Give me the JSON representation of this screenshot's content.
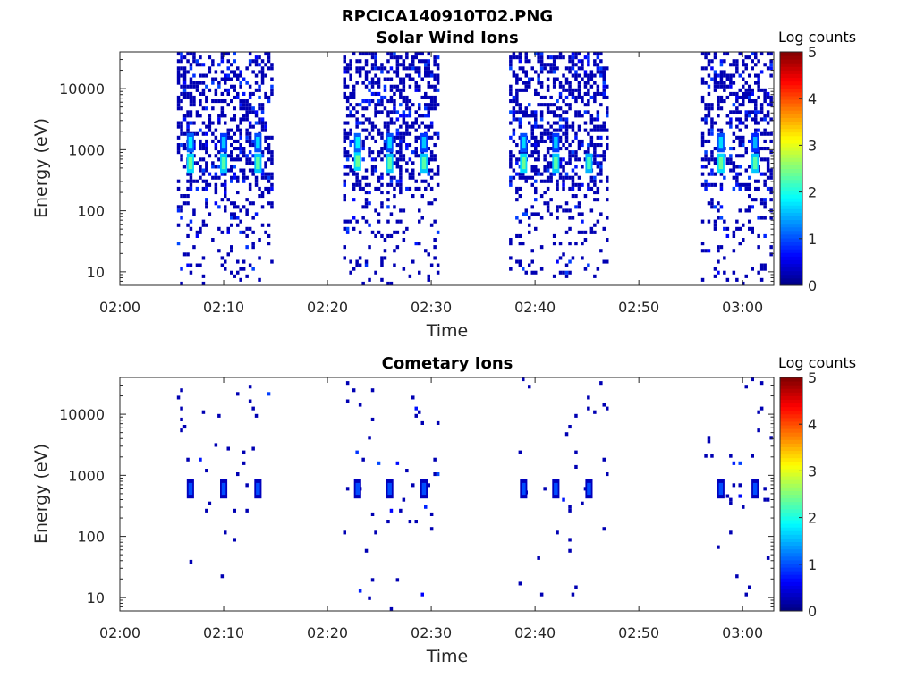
{
  "figure": {
    "title": "RPCICA140910T02.PNG"
  },
  "chart_data": [
    {
      "type": "heatmap",
      "title": "Solar Wind Ions",
      "xlabel": "Time",
      "ylabel": "Energy (eV)",
      "x_unit": "minutes after 02:00",
      "xlim": [
        0,
        63
      ],
      "xticks": [
        0,
        10,
        20,
        30,
        40,
        50,
        60
      ],
      "xtick_labels": [
        "02:00",
        "02:10",
        "02:20",
        "02:30",
        "02:40",
        "02:50",
        "03:00"
      ],
      "yscale": "log",
      "ylim": [
        6,
        40000
      ],
      "yticks": [
        10,
        100,
        1000,
        10000
      ],
      "ytick_labels": [
        "10",
        "100",
        "1000",
        "10000"
      ],
      "colorbar": {
        "title": "Log counts",
        "range": [
          0,
          5
        ],
        "ticks": [
          "0",
          "1",
          "2",
          "3",
          "4",
          "5"
        ]
      },
      "bursts": [
        {
          "start": 5.5,
          "end": 14.8,
          "peaks": [
            {
              "t": 6.8,
              "e": 600,
              "logc": 2.4
            },
            {
              "t": 6.8,
              "e": 1300,
              "logc": 1.8
            },
            {
              "t": 10.0,
              "e": 600,
              "logc": 2.3
            },
            {
              "t": 10.0,
              "e": 1300,
              "logc": 1.6
            },
            {
              "t": 13.3,
              "e": 600,
              "logc": 2.3
            },
            {
              "t": 13.3,
              "e": 1300,
              "logc": 1.7
            }
          ]
        },
        {
          "start": 21.5,
          "end": 30.8,
          "peaks": [
            {
              "t": 22.9,
              "e": 650,
              "logc": 2.4
            },
            {
              "t": 22.9,
              "e": 1300,
              "logc": 1.8
            },
            {
              "t": 26.0,
              "e": 600,
              "logc": 2.3
            },
            {
              "t": 26.0,
              "e": 1300,
              "logc": 1.7
            },
            {
              "t": 29.3,
              "e": 600,
              "logc": 2.3
            },
            {
              "t": 29.3,
              "e": 1300,
              "logc": 1.6
            }
          ]
        },
        {
          "start": 37.5,
          "end": 46.8,
          "peaks": [
            {
              "t": 38.9,
              "e": 600,
              "logc": 2.4
            },
            {
              "t": 38.9,
              "e": 1300,
              "logc": 1.7
            },
            {
              "t": 42.0,
              "e": 600,
              "logc": 2.3
            },
            {
              "t": 42.0,
              "e": 1300,
              "logc": 1.6
            },
            {
              "t": 45.2,
              "e": 600,
              "logc": 2.2
            }
          ]
        },
        {
          "start": 56.0,
          "end": 62.8,
          "peaks": [
            {
              "t": 57.9,
              "e": 600,
              "logc": 2.4
            },
            {
              "t": 57.9,
              "e": 1300,
              "logc": 1.7
            },
            {
              "t": 61.2,
              "e": 600,
              "logc": 2.3
            },
            {
              "t": 61.2,
              "e": 1300,
              "logc": 1.5
            }
          ]
        }
      ]
    },
    {
      "type": "heatmap",
      "title": "Cometary Ions",
      "xlabel": "Time",
      "ylabel": "Energy (eV)",
      "x_unit": "minutes after 02:00",
      "xlim": [
        0,
        63
      ],
      "xticks": [
        0,
        10,
        20,
        30,
        40,
        50,
        60
      ],
      "xtick_labels": [
        "02:00",
        "02:10",
        "02:20",
        "02:30",
        "02:40",
        "02:50",
        "03:00"
      ],
      "yscale": "log",
      "ylim": [
        6,
        40000
      ],
      "yticks": [
        10,
        100,
        1000,
        10000
      ],
      "ytick_labels": [
        "10",
        "100",
        "1000",
        "10000"
      ],
      "colorbar": {
        "title": "Log counts",
        "range": [
          0,
          5
        ],
        "ticks": [
          "0",
          "1",
          "2",
          "3",
          "4",
          "5"
        ]
      },
      "bursts": [
        {
          "start": 5.5,
          "end": 14.8,
          "peaks": [
            {
              "t": 6.8,
              "e": 600,
              "logc": 1.0
            },
            {
              "t": 10.0,
              "e": 600,
              "logc": 1.0
            },
            {
              "t": 13.3,
              "e": 600,
              "logc": 1.0
            }
          ]
        },
        {
          "start": 21.5,
          "end": 30.8,
          "peaks": [
            {
              "t": 22.9,
              "e": 600,
              "logc": 1.0
            },
            {
              "t": 26.0,
              "e": 600,
              "logc": 1.0
            },
            {
              "t": 29.3,
              "e": 600,
              "logc": 1.0
            }
          ]
        },
        {
          "start": 37.5,
          "end": 46.8,
          "peaks": [
            {
              "t": 38.9,
              "e": 600,
              "logc": 1.0
            },
            {
              "t": 42.0,
              "e": 600,
              "logc": 1.0
            },
            {
              "t": 45.2,
              "e": 600,
              "logc": 1.0
            }
          ]
        },
        {
          "start": 56.0,
          "end": 62.8,
          "peaks": [
            {
              "t": 57.9,
              "e": 600,
              "logc": 1.0
            },
            {
              "t": 61.2,
              "e": 600,
              "logc": 1.0
            }
          ]
        }
      ]
    }
  ]
}
